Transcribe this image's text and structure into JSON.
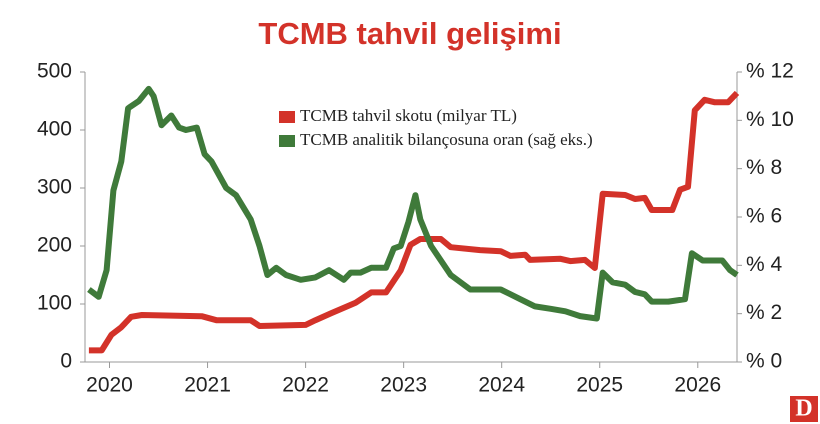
{
  "chart_data": {
    "type": "line",
    "title": "TCMB tahvil gelişimi",
    "xlim": [
      2019.75,
      2026.4
    ],
    "xticks": [
      2020,
      2021,
      2022,
      2023,
      2024,
      2025,
      2026
    ],
    "ylim": [
      0,
      500
    ],
    "yticks": [
      0,
      100,
      200,
      300,
      400,
      500
    ],
    "y2lim": [
      0,
      12
    ],
    "y2ticks": [
      {
        "value": 0,
        "label": "% 0"
      },
      {
        "value": 2,
        "label": "% 2"
      },
      {
        "value": 4,
        "label": "% 4"
      },
      {
        "value": 6,
        "label": "% 6"
      },
      {
        "value": 8,
        "label": "% 8"
      },
      {
        "value": 10,
        "label": "% 10"
      },
      {
        "value": 12,
        "label": "% 12"
      }
    ],
    "grid": false,
    "legend": "upper center",
    "series": [
      {
        "name": "TCMB tahvil skotu (milyar TL)",
        "color": "#d33229",
        "x": [
          2019.79,
          2019.92,
          2020.02,
          2020.12,
          2020.22,
          2020.33,
          2020.94,
          2021.09,
          2021.44,
          2021.53,
          2022.0,
          2022.1,
          2022.26,
          2022.51,
          2022.67,
          2022.82,
          2022.97,
          2023.07,
          2023.17,
          2023.38,
          2023.48,
          2023.78,
          2023.99,
          2024.09,
          2024.24,
          2024.29,
          2024.6,
          2024.7,
          2024.85,
          2024.95,
          2025.03,
          2025.26,
          2025.36,
          2025.46,
          2025.53,
          2025.74,
          2025.82,
          2025.9,
          2025.97,
          2026.07,
          2026.17,
          2026.31,
          2026.4
        ],
        "values": [
          20,
          20,
          47,
          60,
          78,
          81,
          79,
          72,
          72,
          62,
          64,
          72,
          84,
          102,
          120,
          120,
          158,
          202,
          212,
          212,
          198,
          193,
          191,
          183,
          185,
          176,
          178,
          174,
          176,
          162,
          290,
          288,
          281,
          283,
          262,
          262,
          297,
          302,
          434,
          452,
          448,
          448,
          464
        ]
      },
      {
        "name": "TCMB analitik bilançosuna oran (sağ eks.)",
        "color": "#3f7a3a",
        "axis": "y2",
        "x": [
          2019.79,
          2019.89,
          2019.97,
          2020.04,
          2020.12,
          2020.19,
          2020.3,
          2020.4,
          2020.45,
          2020.53,
          2020.63,
          2020.71,
          2020.78,
          2020.89,
          2020.97,
          2021.04,
          2021.19,
          2021.29,
          2021.44,
          2021.53,
          2021.61,
          2021.7,
          2021.8,
          2021.95,
          2022.1,
          2022.24,
          2022.39,
          2022.46,
          2022.56,
          2022.67,
          2022.82,
          2022.9,
          2022.97,
          2023.05,
          2023.12,
          2023.17,
          2023.28,
          2023.48,
          2023.68,
          2023.99,
          2024.09,
          2024.19,
          2024.34,
          2024.5,
          2024.65,
          2024.8,
          2024.97,
          2025.03,
          2025.13,
          2025.26,
          2025.36,
          2025.46,
          2025.53,
          2025.7,
          2025.87,
          2025.94,
          2026.05,
          2026.25,
          2026.33,
          2026.4
        ],
        "values": [
          3.0,
          2.7,
          3.8,
          7.1,
          8.3,
          10.5,
          10.8,
          11.3,
          11.0,
          9.8,
          10.2,
          9.7,
          9.6,
          9.7,
          8.6,
          8.3,
          7.2,
          6.9,
          5.9,
          4.8,
          3.6,
          3.9,
          3.6,
          3.4,
          3.5,
          3.8,
          3.4,
          3.7,
          3.7,
          3.9,
          3.9,
          4.7,
          4.8,
          5.8,
          6.9,
          5.9,
          4.8,
          3.6,
          3.0,
          3.0,
          2.8,
          2.6,
          2.3,
          2.2,
          2.1,
          1.9,
          1.8,
          3.7,
          3.3,
          3.2,
          2.9,
          2.8,
          2.5,
          2.5,
          2.6,
          4.5,
          4.2,
          4.2,
          3.8,
          3.6
        ]
      }
    ]
  },
  "logo": "D"
}
